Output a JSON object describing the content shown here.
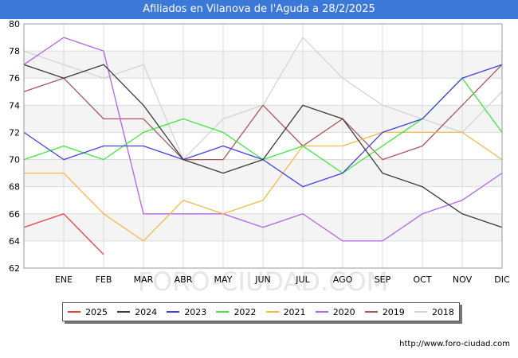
{
  "title": "Afiliados en Vilanova de l'Aguda a 28/2/2025",
  "watermark": "FORO-CIUDAD.COM",
  "footer_url": "http://www.foro-ciudad.com",
  "chart_data": {
    "type": "line",
    "title": "Afiliados en Vilanova de l'Aguda a 28/2/2025",
    "xlabel": "",
    "ylabel": "",
    "x": [
      "",
      "ENE",
      "FEB",
      "MAR",
      "ABR",
      "MAY",
      "JUN",
      "JUL",
      "AGO",
      "SEP",
      "OCT",
      "NOV",
      "DIC"
    ],
    "ylim": [
      62,
      80
    ],
    "yticks": [
      62,
      64,
      66,
      68,
      70,
      72,
      74,
      76,
      78,
      80
    ],
    "grid": true,
    "legend_position": "bottom",
    "series": [
      {
        "name": "2025",
        "color": "#e8413e",
        "values": [
          65,
          66,
          63,
          null,
          null,
          null,
          null,
          null,
          null,
          null,
          null,
          null,
          null
        ]
      },
      {
        "name": "2024",
        "color": "#3a3a3a",
        "values": [
          77,
          76,
          77,
          74,
          70,
          69,
          70,
          74,
          73,
          69,
          68,
          66,
          65
        ]
      },
      {
        "name": "2023",
        "color": "#4040e0",
        "values": [
          72,
          70,
          71,
          71,
          70,
          71,
          70,
          68,
          69,
          72,
          73,
          76,
          77
        ]
      },
      {
        "name": "2022",
        "color": "#3ee83e",
        "values": [
          70,
          71,
          70,
          72,
          73,
          72,
          70,
          71,
          69,
          71,
          73,
          76,
          72
        ]
      },
      {
        "name": "2021",
        "color": "#f5b944",
        "values": [
          69,
          69,
          66,
          64,
          67,
          66,
          67,
          71,
          71,
          72,
          72,
          72,
          70
        ]
      },
      {
        "name": "2020",
        "color": "#b364e8",
        "values": [
          77,
          79,
          78,
          66,
          66,
          66,
          65,
          66,
          64,
          64,
          66,
          67,
          69
        ]
      },
      {
        "name": "2019",
        "color": "#a85858",
        "values": [
          75,
          76,
          73,
          73,
          70,
          70,
          74,
          71,
          73,
          70,
          71,
          74,
          77
        ]
      },
      {
        "name": "2018",
        "color": "#d4d4d4",
        "values": [
          78,
          77,
          76,
          77,
          70,
          73,
          74,
          79,
          76,
          74,
          73,
          72,
          75
        ]
      }
    ]
  }
}
